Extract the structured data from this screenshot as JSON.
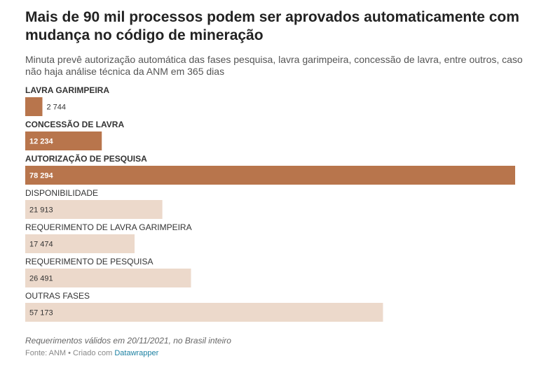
{
  "colors": {
    "highlight": "#b8754c",
    "muted": "#ecd9cb",
    "text_dark": "#333333",
    "text_light": "#ffffff",
    "link": "#1d81a2"
  },
  "chart_data": {
    "type": "bar",
    "orientation": "horizontal",
    "title": "Mais de 90 mil processos podem ser aprovados automaticamente com mudança no código de mineração",
    "subtitle": "Minuta prevê autorização automática das fases pesquisa, lavra garimpeira, concessão de lavra, entre outros, caso não haja análise técnica da ANM em 365 dias",
    "xlim": [
      0,
      78294
    ],
    "grid": false,
    "legend": "none",
    "categories": [
      {
        "label": "LAVRA GARIMPEIRA",
        "value": 2744,
        "value_label": "2 744",
        "highlight": true
      },
      {
        "label": "CONCESSÃO DE LAVRA",
        "value": 12234,
        "value_label": "12 234",
        "highlight": true
      },
      {
        "label": "AUTORIZAÇÃO DE PESQUISA",
        "value": 78294,
        "value_label": "78 294",
        "highlight": true
      },
      {
        "label": "DISPONIBILIDADE",
        "value": 21913,
        "value_label": "21 913",
        "highlight": false
      },
      {
        "label": "REQUERIMENTO DE LAVRA GARIMPEIRA",
        "value": 17474,
        "value_label": "17 474",
        "highlight": false
      },
      {
        "label": "REQUERIMENTO DE PESQUISA",
        "value": 26491,
        "value_label": "26 491",
        "highlight": false
      },
      {
        "label": "OUTRAS FASES",
        "value": 57173,
        "value_label": "57 173",
        "highlight": false
      }
    ]
  },
  "footer": {
    "note": "Requerimentos válidos em 20/11/2021, no Brasil inteiro",
    "source_prefix": "Fonte: ANM • Criado com ",
    "source_link": "Datawrapper"
  }
}
